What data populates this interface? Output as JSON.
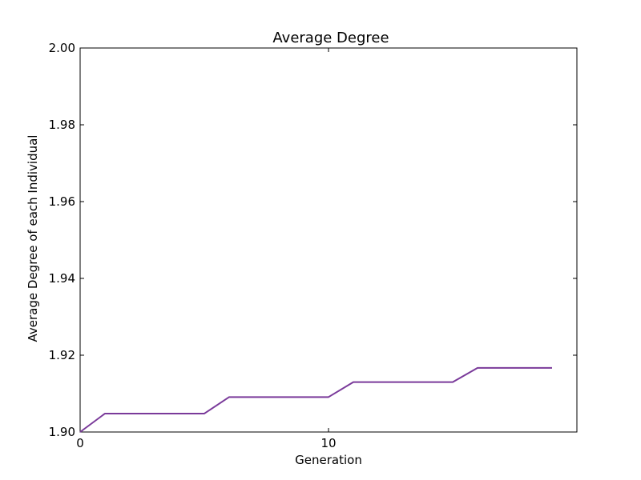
{
  "chart_data": {
    "type": "line",
    "title": "Average Degree",
    "xlabel": "Generation",
    "ylabel": "Average Degree of each Individual",
    "xlim": [
      0,
      20
    ],
    "ylim": [
      1.9,
      2.0
    ],
    "xticks": [
      0,
      10
    ],
    "xtick_labels": [
      "0",
      "10"
    ],
    "yticks": [
      1.9,
      1.92,
      1.94,
      1.96,
      1.98,
      2.0
    ],
    "ytick_labels": [
      "1.90",
      "1.92",
      "1.94",
      "1.96",
      "1.98",
      "2.00"
    ],
    "grid": false,
    "series": [
      {
        "color": "#7a3a9a",
        "x": [
          0,
          1,
          2,
          3,
          4,
          5,
          6,
          7,
          8,
          9,
          10,
          11,
          12,
          13,
          14,
          15,
          16,
          17,
          18,
          19
        ],
        "y": [
          1.9,
          1.9048,
          1.9048,
          1.9048,
          1.9048,
          1.9048,
          1.9091,
          1.9091,
          1.9091,
          1.9091,
          1.9091,
          1.913,
          1.913,
          1.913,
          1.913,
          1.913,
          1.9167,
          1.9167,
          1.9167,
          1.9167
        ]
      }
    ]
  }
}
